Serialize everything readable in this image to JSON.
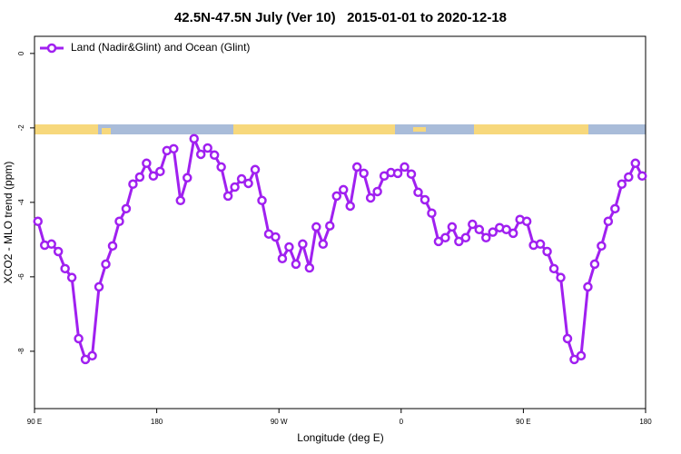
{
  "chart_data": {
    "type": "line",
    "title": "42.5N-47.5N July (Ver 10)   2015-01-01 to 2020-12-18",
    "x_label": "Longitude (deg E)",
    "y_label": "XCO2 - MLO trend (ppm)",
    "xlim": [
      90,
      540
    ],
    "ylim": [
      -9.54,
      0.46
    ],
    "xticks": [
      {
        "value": 90,
        "label": "90 E"
      },
      180,
      {
        "value": 270,
        "label": "90 W"
      },
      {
        "value": 360,
        "label": "0"
      },
      {
        "value": 450,
        "label": "90 E"
      },
      {
        "value": 540,
        "label": "180"
      }
    ],
    "yticks": [
      0,
      -2,
      -4,
      -6,
      -8
    ],
    "legend_position": "top-left",
    "x": [
      92.5,
      97.5,
      102.5,
      107.5,
      112.5,
      117.5,
      122.5,
      127.5,
      132.5,
      137.5,
      142.5,
      147.5,
      152.5,
      157.5,
      162.5,
      167.5,
      172.5,
      177.5,
      182.5,
      187.5,
      192.5,
      197.5,
      202.5,
      207.5,
      212.5,
      217.5,
      222.5,
      227.5,
      232.5,
      237.5,
      242.5,
      247.5,
      252.5,
      257.5,
      262.5,
      267.5,
      272.5,
      277.5,
      282.5,
      287.5,
      292.5,
      297.5,
      302.5,
      307.5,
      312.5,
      317.5,
      322.5,
      327.5,
      332.5,
      337.5,
      342.5,
      347.5,
      352.5,
      357.5,
      362.5,
      367.5,
      372.5,
      377.5,
      382.5,
      387.5,
      392.5,
      397.5,
      402.5,
      407.5,
      412.5,
      417.5,
      422.5,
      427.5,
      432.5,
      437.5,
      442.5,
      447.5,
      452.5,
      457.5,
      462.5,
      467.5,
      472.5,
      477.5,
      482.5,
      487.5,
      492.5,
      497.5,
      502.5,
      507.5,
      512.5,
      517.5,
      522.5,
      527.5,
      532.5,
      537.5
    ],
    "series": [
      {
        "name": "Land (Nadir&Glint) and Ocean (Glint)",
        "color": "#a020f0",
        "values": [
          -4.51,
          -5.15,
          -5.12,
          -5.32,
          -5.78,
          -6.02,
          -7.66,
          -8.22,
          -8.12,
          -6.27,
          -5.66,
          -5.17,
          -4.51,
          -4.17,
          -3.51,
          -3.32,
          -2.95,
          -3.29,
          -3.17,
          -2.61,
          -2.56,
          -3.95,
          -3.34,
          -2.29,
          -2.71,
          -2.54,
          -2.73,
          -3.05,
          -3.83,
          -3.59,
          -3.37,
          -3.49,
          -3.12,
          -3.95,
          -4.85,
          -4.93,
          -5.51,
          -5.2,
          -5.66,
          -5.12,
          -5.76,
          -4.66,
          -5.12,
          -4.63,
          -3.83,
          -3.66,
          -4.1,
          -3.05,
          -3.22,
          -3.88,
          -3.71,
          -3.29,
          -3.2,
          -3.22,
          -3.05,
          -3.24,
          -3.73,
          -3.93,
          -4.29,
          -5.05,
          -4.95,
          -4.66,
          -5.05,
          -4.95,
          -4.59,
          -4.73,
          -4.95,
          -4.8,
          -4.68,
          -4.73,
          -4.83,
          -4.46,
          -4.51,
          -5.15,
          -5.12,
          -5.32,
          -5.78,
          -6.02,
          -7.66,
          -8.22,
          -8.12,
          -6.27,
          -5.66,
          -5.17,
          -4.51,
          -4.17,
          -3.51,
          -3.32,
          -2.95,
          -3.29
        ]
      }
    ]
  }
}
